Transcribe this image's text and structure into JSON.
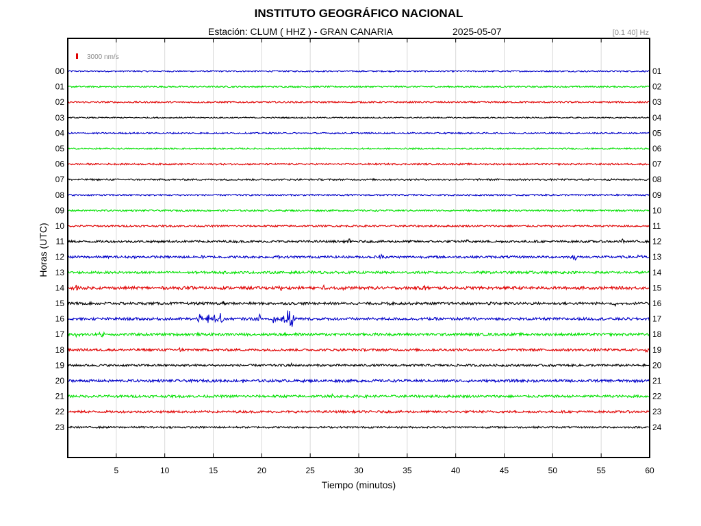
{
  "header": {
    "title": "INSTITUTO GEOGRÁFICO NACIONAL",
    "station": "Estación:  CLUM ( HHZ ) - GRAN CANARIA",
    "date": "2025-05-07",
    "filter": "[0.1 40] Hz"
  },
  "chart_data": {
    "type": "line",
    "title": "INSTITUTO GEOGRÁFICO NACIONAL",
    "xlabel": "Tiempo (minutos)",
    "ylabel": "Horas (UTC)",
    "xlim": [
      0,
      60
    ],
    "x_ticks": [
      "5",
      "10",
      "15",
      "20",
      "25",
      "30",
      "35",
      "40",
      "45",
      "50",
      "55",
      "60"
    ],
    "grid_x": true,
    "scale_bar": "3000 nm/s",
    "left_labels": [
      "00",
      "01",
      "02",
      "03",
      "04",
      "05",
      "06",
      "07",
      "08",
      "09",
      "10",
      "11",
      "12",
      "13",
      "14",
      "15",
      "16",
      "17",
      "18",
      "19",
      "20",
      "21",
      "22",
      "23"
    ],
    "right_labels": [
      "01",
      "02",
      "03",
      "04",
      "05",
      "06",
      "07",
      "08",
      "09",
      "10",
      "11",
      "12",
      "13",
      "14",
      "15",
      "16",
      "17",
      "18",
      "19",
      "20",
      "21",
      "22",
      "23",
      "24"
    ],
    "trace_colors": [
      "#0000c8",
      "#00e000",
      "#e00000",
      "#000000"
    ],
    "traces": [
      {
        "hour": "00",
        "color": "#0000c8",
        "noise": 1.0,
        "events": []
      },
      {
        "hour": "01",
        "color": "#00e000",
        "noise": 1.1,
        "events": []
      },
      {
        "hour": "02",
        "color": "#e00000",
        "noise": 1.1,
        "events": []
      },
      {
        "hour": "03",
        "color": "#000000",
        "noise": 0.9,
        "events": []
      },
      {
        "hour": "04",
        "color": "#0000c8",
        "noise": 1.1,
        "events": []
      },
      {
        "hour": "05",
        "color": "#00e000",
        "noise": 1.0,
        "events": []
      },
      {
        "hour": "06",
        "color": "#e00000",
        "noise": 1.2,
        "events": []
      },
      {
        "hour": "07",
        "color": "#000000",
        "noise": 1.2,
        "events": []
      },
      {
        "hour": "08",
        "color": "#0000c8",
        "noise": 1.1,
        "events": []
      },
      {
        "hour": "09",
        "color": "#00e000",
        "noise": 1.2,
        "events": []
      },
      {
        "hour": "10",
        "color": "#e00000",
        "noise": 1.3,
        "events": [
          {
            "t": 50.1,
            "amp": 3
          }
        ]
      },
      {
        "hour": "11",
        "color": "#000000",
        "noise": 1.6,
        "events": [
          {
            "t": 29.0,
            "amp": 4
          },
          {
            "t": 41.3,
            "amp": 3
          },
          {
            "t": 57.2,
            "amp": 5
          }
        ]
      },
      {
        "hour": "12",
        "color": "#0000c8",
        "noise": 1.7,
        "events": [
          {
            "t": 13.6,
            "amp": 5
          },
          {
            "t": 21.5,
            "amp": 4
          },
          {
            "t": 32.4,
            "amp": 5
          },
          {
            "t": 52.3,
            "amp": 6
          },
          {
            "t": 59.0,
            "amp": 4
          }
        ]
      },
      {
        "hour": "13",
        "color": "#00e000",
        "noise": 1.7,
        "events": [
          {
            "t": 7.2,
            "amp": 3
          },
          {
            "t": 25.0,
            "amp": 3
          },
          {
            "t": 47.9,
            "amp": 4
          }
        ]
      },
      {
        "hour": "14",
        "color": "#e00000",
        "noise": 2.0,
        "events": [
          {
            "t": 0.9,
            "amp": 5
          },
          {
            "t": 12.3,
            "amp": 4
          },
          {
            "t": 22.0,
            "amp": 4
          },
          {
            "t": 26.5,
            "amp": 5
          },
          {
            "t": 28.5,
            "amp": 4
          },
          {
            "t": 36.8,
            "amp": 4
          }
        ]
      },
      {
        "hour": "15",
        "color": "#000000",
        "noise": 1.8,
        "events": [
          {
            "t": 4.1,
            "amp": 3
          },
          {
            "t": 16.0,
            "amp": 3
          },
          {
            "t": 33.1,
            "amp": 3
          },
          {
            "t": 43.6,
            "amp": 5
          },
          {
            "t": 56.5,
            "amp": 3
          }
        ]
      },
      {
        "hour": "16",
        "color": "#0000c8",
        "noise": 1.9,
        "events": [
          {
            "t": 13.7,
            "amp": 15
          },
          {
            "t": 14.5,
            "amp": 8
          },
          {
            "t": 15.1,
            "amp": 10
          },
          {
            "t": 15.8,
            "amp": 12
          },
          {
            "t": 19.8,
            "amp": 7
          },
          {
            "t": 21.2,
            "amp": 5
          },
          {
            "t": 22.3,
            "amp": 18
          },
          {
            "t": 22.7,
            "amp": 12
          },
          {
            "t": 23.1,
            "amp": 22
          }
        ]
      },
      {
        "hour": "17",
        "color": "#00e000",
        "noise": 1.9,
        "events": [
          {
            "t": 0.9,
            "amp": 5
          },
          {
            "t": 3.5,
            "amp": 7
          },
          {
            "t": 27.0,
            "amp": 3
          }
        ]
      },
      {
        "hour": "18",
        "color": "#e00000",
        "noise": 1.7,
        "events": [
          {
            "t": 11.6,
            "amp": 3
          },
          {
            "t": 59.6,
            "amp": 3
          }
        ]
      },
      {
        "hour": "19",
        "color": "#000000",
        "noise": 1.6,
        "events": [
          {
            "t": 23.0,
            "amp": 3
          }
        ]
      },
      {
        "hour": "20",
        "color": "#0000c8",
        "noise": 1.9,
        "events": [
          {
            "t": 18.0,
            "amp": 3
          }
        ]
      },
      {
        "hour": "21",
        "color": "#00e000",
        "noise": 1.8,
        "events": [
          {
            "t": 4.3,
            "amp": 3
          },
          {
            "t": 27.2,
            "amp": 3
          }
        ]
      },
      {
        "hour": "22",
        "color": "#e00000",
        "noise": 1.6,
        "events": []
      },
      {
        "hour": "23",
        "color": "#000000",
        "noise": 1.3,
        "events": []
      }
    ]
  }
}
